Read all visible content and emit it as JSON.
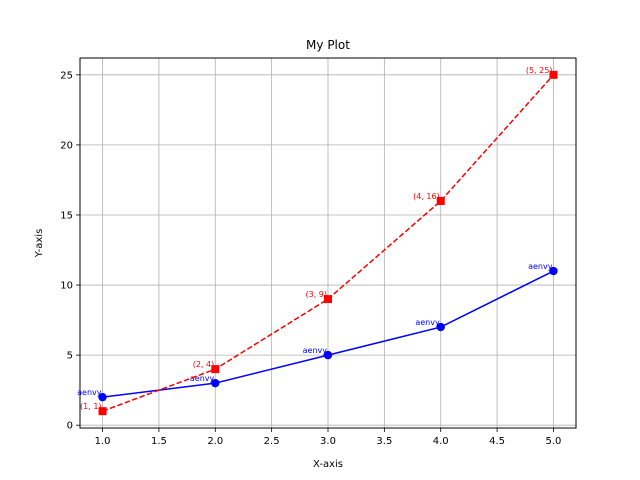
{
  "chart_data": {
    "type": "line",
    "title": "My Plot",
    "xlabel": "X-axis",
    "ylabel": "Y-axis",
    "xlim": [
      0.8,
      5.2
    ],
    "ylim": [
      -0.2,
      26.2
    ],
    "xticks": [
      "1.0",
      "1.5",
      "2.0",
      "2.5",
      "3.0",
      "3.5",
      "4.0",
      "4.5",
      "5.0"
    ],
    "yticks": [
      "0",
      "5",
      "10",
      "15",
      "20",
      "25"
    ],
    "grid": true,
    "series": [
      {
        "color": "#0000ff",
        "line_style": "solid",
        "marker": "circle",
        "x": [
          1,
          2,
          3,
          4,
          5
        ],
        "y": [
          2,
          3,
          5,
          7,
          11
        ],
        "labels": [
          "aenvy",
          "aenvy",
          "aenvy",
          "aenvy",
          "aenvy"
        ]
      },
      {
        "color": "#ff0000",
        "line_style": "dashed",
        "marker": "square",
        "x": [
          1,
          2,
          3,
          4,
          5
        ],
        "y": [
          1,
          4,
          9,
          16,
          25
        ],
        "labels": [
          "(1, 1)",
          "(2, 4)",
          "(3, 9)",
          "(4, 16)",
          "(5, 25)"
        ]
      }
    ]
  }
}
